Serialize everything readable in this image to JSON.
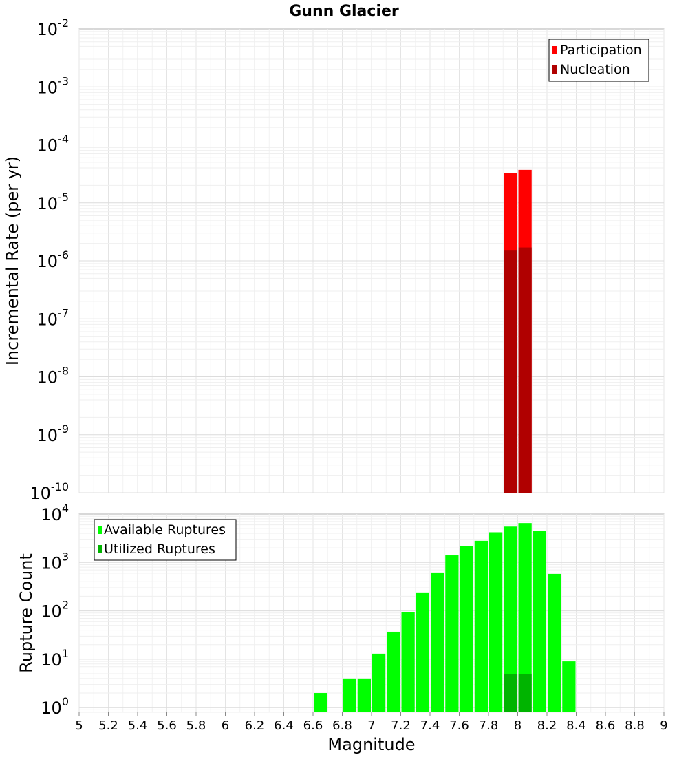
{
  "title": "Gunn Glacier",
  "xlabel": "Magnitude",
  "x_ticks": [
    "5",
    "5.2",
    "5.4",
    "5.6",
    "5.8",
    "6",
    "6.2",
    "6.4",
    "6.6",
    "6.8",
    "7",
    "7.2",
    "7.4",
    "7.6",
    "7.8",
    "8",
    "8.2",
    "8.4",
    "8.6",
    "8.8",
    "9"
  ],
  "chart_data": [
    {
      "type": "bar",
      "title": "Gunn Glacier",
      "xlabel": "",
      "ylabel": "Incremental Rate (per yr)",
      "y_scale": "log",
      "xlim": [
        5,
        9
      ],
      "ylim": [
        1e-10,
        0.01
      ],
      "grid": true,
      "legend_position": "top-right",
      "y_tick_exponents": [
        "-10",
        "-9",
        "-8",
        "-7",
        "-6",
        "-5",
        "-4",
        "-3",
        "-2"
      ],
      "bar_width": 0.1,
      "series": [
        {
          "name": "Participation",
          "color": "#ff0000",
          "x": [
            7.95,
            8.05
          ],
          "values": [
            3.3e-05,
            3.7e-05
          ]
        },
        {
          "name": "Nucleation",
          "color": "#b00000",
          "x": [
            7.95,
            8.05
          ],
          "values": [
            1.5e-06,
            1.7e-06
          ]
        }
      ]
    },
    {
      "type": "bar",
      "xlabel": "Magnitude",
      "ylabel": "Rupture Count",
      "y_scale": "log",
      "xlim": [
        5,
        9
      ],
      "ylim": [
        0.8,
        10000
      ],
      "grid": true,
      "legend_position": "top-left",
      "y_tick_exponents": [
        "0",
        "1",
        "2",
        "3",
        "4"
      ],
      "bar_width": 0.1,
      "series": [
        {
          "name": "Available Ruptures",
          "color": "#00ff00",
          "x": [
            6.65,
            6.85,
            6.95,
            7.05,
            7.15,
            7.25,
            7.35,
            7.45,
            7.55,
            7.65,
            7.75,
            7.85,
            7.95,
            8.05,
            8.15,
            8.25,
            8.35
          ],
          "values": [
            2,
            4,
            4,
            13,
            37,
            93,
            240,
            620,
            1400,
            2200,
            2800,
            4200,
            5500,
            6500,
            4500,
            580,
            9
          ]
        },
        {
          "name": "Utilized Ruptures",
          "color": "#00b400",
          "x": [
            7.95,
            8.05
          ],
          "values": [
            5,
            5
          ]
        }
      ]
    }
  ]
}
